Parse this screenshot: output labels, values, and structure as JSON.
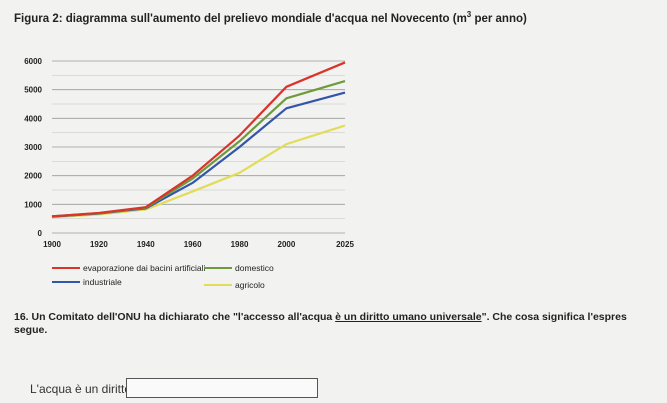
{
  "figure_title": {
    "text": "Figura 2: diagramma sull'aumento del prelievo mondiale d'acqua nel Novecento (m",
    "sup": "3",
    "suffix": " per anno)"
  },
  "chart_data": {
    "type": "line",
    "x": [
      1900,
      1920,
      1940,
      1960,
      1980,
      2000,
      2025
    ],
    "xticks": [
      "1900",
      "1920",
      "1940",
      "1960",
      "1980",
      "2000",
      "2025"
    ],
    "yticks": [
      "0",
      "1000",
      "2000",
      "3000",
      "4000",
      "5000",
      "6000"
    ],
    "xlim": [
      1900,
      2025
    ],
    "ylim": [
      0,
      6000
    ],
    "grid": true,
    "series": [
      {
        "name": "evaporazione dai bacini artificiali",
        "color": "#d9332b",
        "values": [
          580,
          700,
          900,
          2000,
          3400,
          5100,
          5950
        ]
      },
      {
        "name": "domestico",
        "color": "#6d9a3c",
        "values": [
          580,
          690,
          880,
          1900,
          3200,
          4700,
          5300
        ]
      },
      {
        "name": "industriale",
        "color": "#3355aa",
        "values": [
          570,
          680,
          860,
          1750,
          3000,
          4350,
          4900
        ]
      },
      {
        "name": "agricolo",
        "color": "#e2dc58",
        "values": [
          550,
          650,
          820,
          1450,
          2100,
          3100,
          3750
        ]
      }
    ]
  },
  "question": {
    "part1": "16. Un Comitato dell'ONU ha dichiarato che \"l'accesso all'acqua ",
    "underlined": "è un diritto umano universale",
    "part2": "\". Che cosa significa l'espres",
    "line2": "segue."
  },
  "answer": {
    "prefix": "L'acqua è un diritto"
  }
}
